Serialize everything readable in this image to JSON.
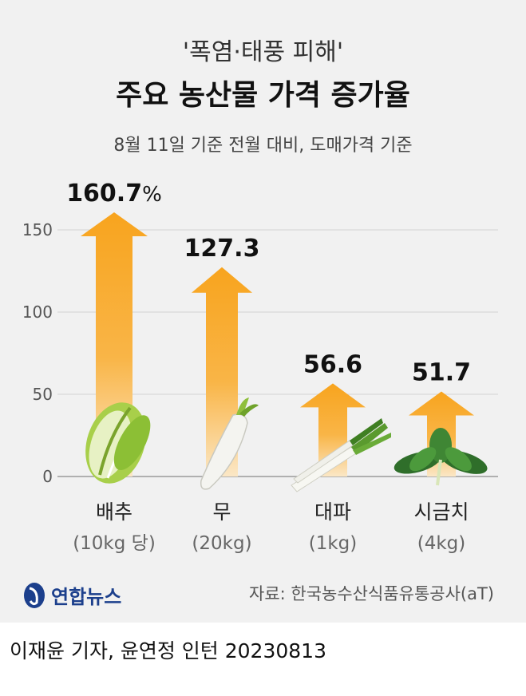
{
  "header": {
    "subtitle": "'폭염·태풍 피해'",
    "title": "주요 농산물 가격 증가율",
    "note": "8월 11일 기준 전월 대비, 도매가격 기준"
  },
  "chart_data": {
    "type": "bar",
    "title": "주요 농산물 가격 증가율",
    "ylabel": "%",
    "ylim": [
      0,
      150
    ],
    "yticks": [
      0,
      50,
      100,
      150
    ],
    "ytick_labels": [
      "0",
      "50",
      "100",
      "150"
    ],
    "grid": true,
    "categories": [
      "배추",
      "무",
      "대파",
      "시금치"
    ],
    "category_units": [
      "(10kg 당)",
      "(20kg)",
      "(1kg)",
      "(4kg)"
    ],
    "values": [
      160.7,
      127.3,
      56.6,
      51.7
    ],
    "value_labels": [
      "160.7",
      "127.3",
      "56.6",
      "51.7"
    ],
    "first_label_suffix": "%"
  },
  "colors": {
    "panel": "#f1f1f1",
    "arrow_top": "#f8a41e",
    "arrow_bottom": "#fbe7c6",
    "grid": "#d2d2d2",
    "logo": "#1c3f8c"
  },
  "footer": {
    "source": "자료: 한국농수산식품유통공사(aT)",
    "logo_text": "연합뉴스",
    "logo_icon": "yonhap-logo-icon",
    "credit": "이재윤 기자, 윤연정 인턴  20230813"
  },
  "icons": [
    "cabbage-icon",
    "radish-icon",
    "green-onion-icon",
    "spinach-icon"
  ]
}
